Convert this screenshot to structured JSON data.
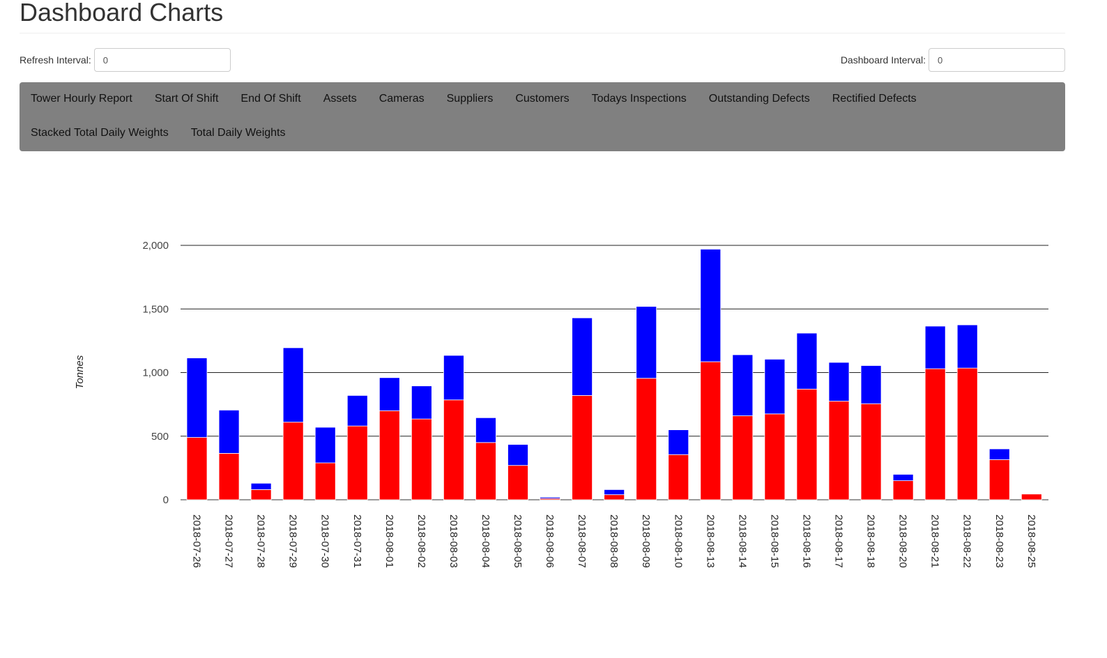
{
  "page": {
    "title": "Dashboard Charts"
  },
  "refresh": {
    "label": "Refresh Interval:",
    "value": "0"
  },
  "dashboard": {
    "label": "Dashboard Interval:",
    "value": "0"
  },
  "nav": {
    "background": "#808080",
    "row1": [
      "Tower Hourly Report",
      "Start Of Shift",
      "End Of Shift",
      "Assets",
      "Cameras",
      "Suppliers",
      "Customers",
      "Todays Inspections",
      "Outstanding Defects",
      "Rectified Defects"
    ],
    "row2": [
      "Stacked Total Daily Weights",
      "Total Daily Weights"
    ]
  },
  "chart_data": {
    "type": "bar",
    "stacked": true,
    "ylabel": "Tonnes",
    "ylim": [
      0,
      2000
    ],
    "yticks": [
      0,
      500,
      1000,
      1500,
      2000
    ],
    "ytick_labels": [
      "0",
      "500",
      "1,000",
      "1,500",
      "2,000"
    ],
    "grid": true,
    "categories": [
      "2018-07-26",
      "2018-07-27",
      "2018-07-28",
      "2018-07-29",
      "2018-07-30",
      "2018-07-31",
      "2018-08-01",
      "2018-08-02",
      "2018-08-03",
      "2018-08-04",
      "2018-08-05",
      "2018-08-06",
      "2018-08-07",
      "2018-08-08",
      "2018-08-09",
      "2018-08-10",
      "2018-08-13",
      "2018-08-14",
      "2018-08-15",
      "2018-08-16",
      "2018-08-17",
      "2018-08-18",
      "2018-08-20",
      "2018-08-21",
      "2018-08-22",
      "2018-08-23",
      "2018-08-25"
    ],
    "series": [
      {
        "color": "#ff0000",
        "values": [
          490,
          365,
          80,
          610,
          290,
          580,
          700,
          635,
          785,
          450,
          270,
          10,
          820,
          40,
          955,
          355,
          1085,
          660,
          675,
          870,
          775,
          755,
          150,
          1030,
          1035,
          315,
          45
        ]
      },
      {
        "color": "#0000ff",
        "values": [
          625,
          340,
          50,
          585,
          280,
          240,
          260,
          260,
          350,
          195,
          165,
          10,
          610,
          40,
          565,
          195,
          885,
          480,
          430,
          440,
          305,
          300,
          50,
          335,
          340,
          85,
          0
        ]
      }
    ]
  }
}
